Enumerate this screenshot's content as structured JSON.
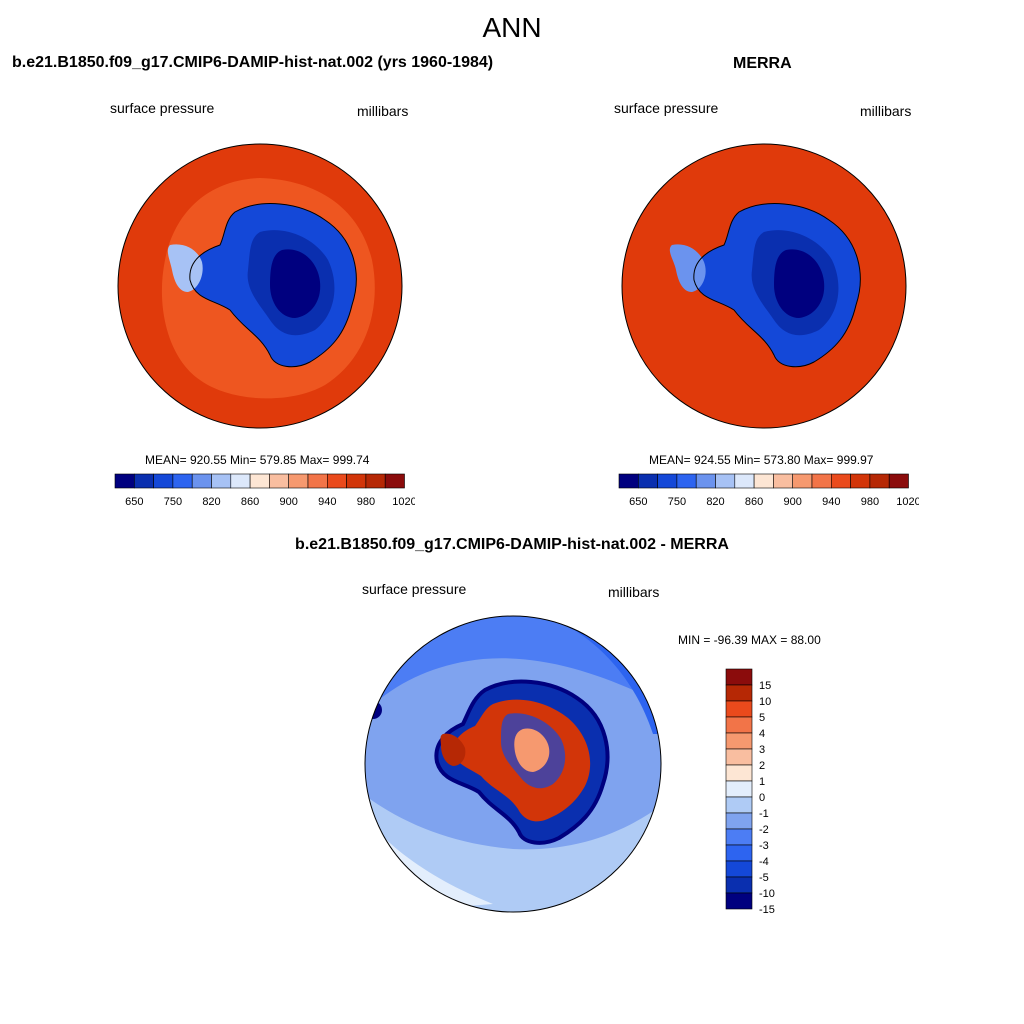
{
  "figure": {
    "title": "ANN"
  },
  "panels": [
    {
      "title": "b.e21.B1850.f09_g17.CMIP6-DAMIP-hist-nat.002 (yrs 1960-1984)",
      "variable": "surface pressure",
      "units": "millibars",
      "stats": "MEAN= 920.55  Min= 579.85  Max= 999.74"
    },
    {
      "title": "MERRA",
      "variable": "surface pressure",
      "units": "millibars",
      "stats": "MEAN= 924.55  Min= 573.80  Max= 999.97"
    },
    {
      "title": "b.e21.B1850.f09_g17.CMIP6-DAMIP-hist-nat.002 - MERRA",
      "variable": "surface pressure",
      "units": "millibars",
      "stats": "MIN = -96.39 MAX =  88.00"
    }
  ],
  "colorbar_abs": {
    "colors": [
      "#00007f",
      "#0a2faf",
      "#1448d8",
      "#2d64f0",
      "#6b93ee",
      "#a7c2f5",
      "#dce8fb",
      "#fde6d4",
      "#f9bea0",
      "#f6996f",
      "#f27448",
      "#ea4a1c",
      "#d23509",
      "#b62805",
      "#8b0c0c"
    ],
    "labels": [
      "650",
      "750",
      "820",
      "860",
      "900",
      "940",
      "980",
      "1020"
    ]
  },
  "colorbar_diff": {
    "colors": [
      "#00007f",
      "#0a2faf",
      "#1448d8",
      "#2d64f0",
      "#4c7df4",
      "#7fa3ef",
      "#afcbf5",
      "#e3eefc",
      "#fde6d4",
      "#f9bea0",
      "#f6996f",
      "#f27448",
      "#ea4a1c",
      "#b62805",
      "#8b0c0c"
    ],
    "labels": [
      "15",
      "10",
      "5",
      "4",
      "3",
      "2",
      "1",
      "0",
      "-1",
      "-2",
      "-3",
      "-4",
      "-5",
      "-10",
      "-15"
    ]
  }
}
